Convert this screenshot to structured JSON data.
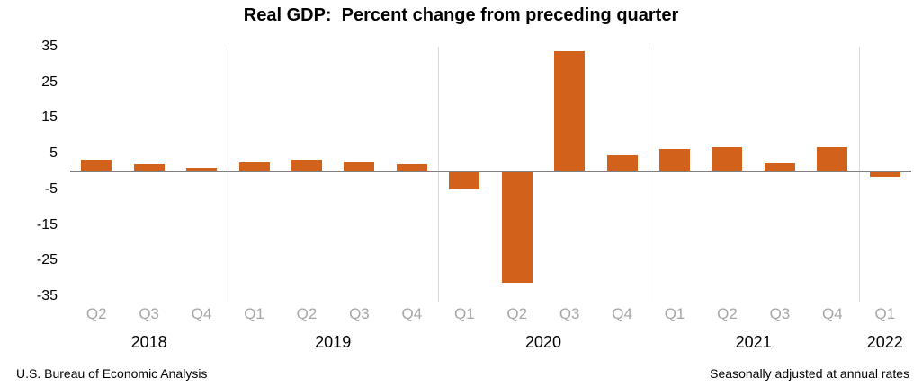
{
  "title": "Real GDP:  Percent change from preceding quarter",
  "footer": {
    "left": "U.S. Bureau of Economic Analysis",
    "right": "Seasonally adjusted at annual rates"
  },
  "chart_data": {
    "type": "bar",
    "title": "Real GDP:  Percent change from preceding quarter",
    "categories": [
      "Q2",
      "Q3",
      "Q4",
      "Q1",
      "Q2",
      "Q3",
      "Q4",
      "Q1",
      "Q2",
      "Q3",
      "Q4",
      "Q1",
      "Q2",
      "Q3",
      "Q4",
      "Q1"
    ],
    "values": [
      3.2,
      1.9,
      0.9,
      2.4,
      3.2,
      2.8,
      1.9,
      -5.1,
      -31.2,
      33.8,
      4.5,
      6.3,
      6.7,
      2.3,
      6.9,
      -1.4
    ],
    "year_groups": [
      {
        "label": "2018",
        "count": 3
      },
      {
        "label": "2019",
        "count": 4
      },
      {
        "label": "2020",
        "count": 4
      },
      {
        "label": "2021",
        "count": 4
      },
      {
        "label": "2022",
        "count": 1
      }
    ],
    "yticks": [
      35,
      25,
      15,
      5,
      -5,
      -15,
      -25,
      -35
    ],
    "ylim": [
      -35,
      35
    ],
    "xlabel": "",
    "ylabel": "",
    "legend": "none",
    "grid": "vertical-year-separators-only",
    "bar_color": "#D2611C",
    "zero_line_color": "#808080",
    "separator_color": "#D9D9D9",
    "quarter_label_color": "#A6A6A6"
  }
}
